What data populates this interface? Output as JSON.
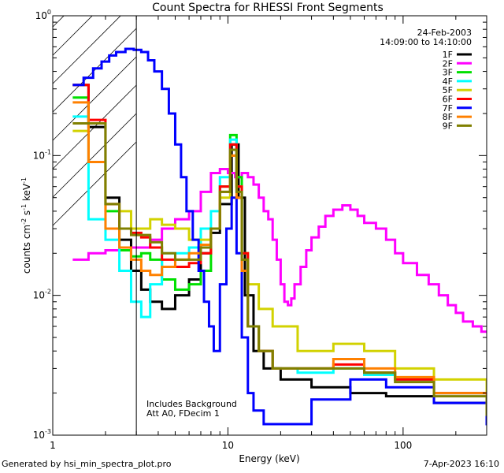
{
  "chart_data": {
    "type": "line",
    "title": "Count Spectra for RHESSI Front Segments",
    "xlabel": "Energy (keV)",
    "ylabel_parts": [
      "counts cm",
      "-2",
      " s",
      "-1",
      " keV",
      "-1"
    ],
    "xscale": "log",
    "yscale": "log",
    "xlim": [
      1,
      300
    ],
    "ylim": [
      0.001,
      1
    ],
    "x_ticks": [
      {
        "v": 1,
        "label": "1"
      },
      {
        "v": 10,
        "label": "10"
      },
      {
        "v": 100,
        "label": "100"
      }
    ],
    "y_ticks": [
      {
        "v": 1,
        "base": "10",
        "exp": "0"
      },
      {
        "v": 0.1,
        "base": "10",
        "exp": "-1"
      },
      {
        "v": 0.01,
        "base": "10",
        "exp": "-2"
      },
      {
        "v": 0.001,
        "base": "10",
        "exp": "-3"
      }
    ],
    "date": "24-Feb-2003",
    "time_range": "14:09:00 to 14:10:00",
    "annotations": [
      "Includes Background",
      "Att A0, FDecim 1"
    ],
    "shaded_region": [
      1,
      3
    ],
    "legend_position": "top-right",
    "colors": {
      "1F": "#000000",
      "2F": "#ff00ff",
      "3F": "#00e000",
      "4F": "#00ffff",
      "5F": "#d2d200",
      "6F": "#ff0000",
      "7F": "#0000ff",
      "8F": "#ff8000",
      "9F": "#808000"
    },
    "series": [
      {
        "name": "1F",
        "color": "#000000",
        "points": [
          [
            1.3,
            0.32
          ],
          [
            1.6,
            0.16
          ],
          [
            2.0,
            0.05
          ],
          [
            2.4,
            0.025
          ],
          [
            2.8,
            0.015
          ],
          [
            3.2,
            0.011
          ],
          [
            3.6,
            0.009
          ],
          [
            4.2,
            0.008
          ],
          [
            5,
            0.01
          ],
          [
            6,
            0.013
          ],
          [
            7,
            0.02
          ],
          [
            8,
            0.028
          ],
          [
            9,
            0.045
          ],
          [
            10.5,
            0.12
          ],
          [
            11.5,
            0.05
          ],
          [
            12.5,
            0.01
          ],
          [
            14,
            0.004
          ],
          [
            16,
            0.003
          ],
          [
            20,
            0.0025
          ],
          [
            30,
            0.0022
          ],
          [
            50,
            0.002
          ],
          [
            80,
            0.0019
          ],
          [
            150,
            0.0017
          ],
          [
            300,
            0.0012
          ]
        ]
      },
      {
        "name": "2F",
        "color": "#ff00ff",
        "points": [
          [
            1.3,
            0.018
          ],
          [
            1.6,
            0.02
          ],
          [
            2.0,
            0.021
          ],
          [
            2.4,
            0.021
          ],
          [
            2.8,
            0.022
          ],
          [
            3.2,
            0.022
          ],
          [
            3.6,
            0.025
          ],
          [
            4.2,
            0.03
          ],
          [
            5,
            0.035
          ],
          [
            6,
            0.04
          ],
          [
            7,
            0.055
          ],
          [
            8,
            0.075
          ],
          [
            9,
            0.08
          ],
          [
            10,
            0.075
          ],
          [
            11,
            0.07
          ],
          [
            12,
            0.075
          ],
          [
            13,
            0.07
          ],
          [
            14,
            0.062
          ],
          [
            15,
            0.05
          ],
          [
            16,
            0.04
          ],
          [
            17,
            0.035
          ],
          [
            18,
            0.025
          ],
          [
            19,
            0.018
          ],
          [
            20,
            0.012
          ],
          [
            21,
            0.009
          ],
          [
            22,
            0.0085
          ],
          [
            23,
            0.0095
          ],
          [
            24,
            0.012
          ],
          [
            26,
            0.016
          ],
          [
            28,
            0.021
          ],
          [
            30,
            0.026
          ],
          [
            33,
            0.031
          ],
          [
            36,
            0.037
          ],
          [
            40,
            0.041
          ],
          [
            45,
            0.044
          ],
          [
            50,
            0.041
          ],
          [
            55,
            0.037
          ],
          [
            60,
            0.033
          ],
          [
            70,
            0.03
          ],
          [
            80,
            0.025
          ],
          [
            90,
            0.02
          ],
          [
            100,
            0.017
          ],
          [
            120,
            0.014
          ],
          [
            140,
            0.012
          ],
          [
            160,
            0.01
          ],
          [
            180,
            0.0085
          ],
          [
            200,
            0.0075
          ],
          [
            220,
            0.0065
          ],
          [
            250,
            0.006
          ],
          [
            280,
            0.0055
          ],
          [
            300,
            0.0055
          ]
        ]
      },
      {
        "name": "3F",
        "color": "#00e000",
        "points": [
          [
            1.3,
            0.26
          ],
          [
            1.6,
            0.17
          ],
          [
            2.0,
            0.04
          ],
          [
            2.4,
            0.021
          ],
          [
            2.8,
            0.019
          ],
          [
            3.2,
            0.02
          ],
          [
            3.6,
            0.018
          ],
          [
            4.2,
            0.013
          ],
          [
            5,
            0.011
          ],
          [
            6,
            0.012
          ],
          [
            7,
            0.015
          ],
          [
            8,
            0.03
          ],
          [
            9,
            0.06
          ],
          [
            10.3,
            0.14
          ],
          [
            11.2,
            0.07
          ],
          [
            12,
            0.02
          ],
          [
            13,
            0.006
          ],
          [
            15,
            0.004
          ],
          [
            18,
            0.003
          ],
          [
            25,
            0.003
          ],
          [
            40,
            0.003
          ],
          [
            60,
            0.0028
          ],
          [
            90,
            0.0025
          ],
          [
            150,
            0.002
          ],
          [
            300,
            0.0015
          ]
        ]
      },
      {
        "name": "4F",
        "color": "#00ffff",
        "points": [
          [
            1.3,
            0.19
          ],
          [
            1.6,
            0.035
          ],
          [
            2.0,
            0.025
          ],
          [
            2.4,
            0.015
          ],
          [
            2.8,
            0.009
          ],
          [
            3.2,
            0.007
          ],
          [
            3.6,
            0.012
          ],
          [
            4.2,
            0.02
          ],
          [
            5,
            0.02
          ],
          [
            6,
            0.022
          ],
          [
            7,
            0.03
          ],
          [
            8,
            0.04
          ],
          [
            9,
            0.07
          ],
          [
            10.3,
            0.13
          ],
          [
            11.2,
            0.06
          ],
          [
            12,
            0.015
          ],
          [
            13,
            0.006
          ],
          [
            15,
            0.004
          ],
          [
            18,
            0.003
          ],
          [
            25,
            0.0028
          ],
          [
            40,
            0.003
          ],
          [
            60,
            0.0027
          ],
          [
            90,
            0.0025
          ],
          [
            150,
            0.002
          ],
          [
            300,
            0.0015
          ]
        ]
      },
      {
        "name": "5F",
        "color": "#d2d200",
        "points": [
          [
            1.3,
            0.15
          ],
          [
            1.6,
            0.09
          ],
          [
            2.0,
            0.045
          ],
          [
            2.4,
            0.04
          ],
          [
            2.8,
            0.03
          ],
          [
            3.2,
            0.03
          ],
          [
            3.6,
            0.035
          ],
          [
            4.2,
            0.032
          ],
          [
            5,
            0.03
          ],
          [
            6,
            0.025
          ],
          [
            7,
            0.025
          ],
          [
            8,
            0.03
          ],
          [
            9,
            0.05
          ],
          [
            10.3,
            0.1
          ],
          [
            11.2,
            0.06
          ],
          [
            12,
            0.02
          ],
          [
            13,
            0.012
          ],
          [
            15,
            0.008
          ],
          [
            18,
            0.006
          ],
          [
            25,
            0.004
          ],
          [
            40,
            0.0045
          ],
          [
            60,
            0.004
          ],
          [
            90,
            0.003
          ],
          [
            150,
            0.0025
          ],
          [
            300,
            0.0018
          ]
        ]
      },
      {
        "name": "6F",
        "color": "#ff0000",
        "points": [
          [
            1.3,
            0.32
          ],
          [
            1.6,
            0.18
          ],
          [
            2.0,
            0.045
          ],
          [
            2.4,
            0.03
          ],
          [
            2.8,
            0.028
          ],
          [
            3.2,
            0.026
          ],
          [
            3.6,
            0.022
          ],
          [
            4.2,
            0.018
          ],
          [
            5,
            0.016
          ],
          [
            6,
            0.017
          ],
          [
            7,
            0.02
          ],
          [
            8,
            0.03
          ],
          [
            9,
            0.06
          ],
          [
            10.3,
            0.12
          ],
          [
            11.2,
            0.06
          ],
          [
            12,
            0.02
          ],
          [
            13,
            0.006
          ],
          [
            15,
            0.004
          ],
          [
            18,
            0.003
          ],
          [
            25,
            0.003
          ],
          [
            40,
            0.0032
          ],
          [
            60,
            0.0028
          ],
          [
            90,
            0.0025
          ],
          [
            150,
            0.002
          ],
          [
            300,
            0.0015
          ]
        ]
      },
      {
        "name": "7F",
        "color": "#0000ff",
        "points": [
          [
            1.3,
            0.32
          ],
          [
            1.5,
            0.36
          ],
          [
            1.7,
            0.42
          ],
          [
            1.9,
            0.47
          ],
          [
            2.1,
            0.52
          ],
          [
            2.3,
            0.55
          ],
          [
            2.6,
            0.58
          ],
          [
            2.9,
            0.57
          ],
          [
            3.2,
            0.55
          ],
          [
            3.5,
            0.48
          ],
          [
            3.8,
            0.4
          ],
          [
            4.2,
            0.3
          ],
          [
            4.6,
            0.2
          ],
          [
            5,
            0.12
          ],
          [
            5.4,
            0.07
          ],
          [
            5.8,
            0.04
          ],
          [
            6.3,
            0.025
          ],
          [
            6.8,
            0.015
          ],
          [
            7.3,
            0.009
          ],
          [
            7.8,
            0.006
          ],
          [
            8.3,
            0.004
          ],
          [
            9,
            0.012
          ],
          [
            9.8,
            0.03
          ],
          [
            10.5,
            0.05
          ],
          [
            11.2,
            0.02
          ],
          [
            12,
            0.005
          ],
          [
            13,
            0.002
          ],
          [
            14,
            0.0015
          ],
          [
            16,
            0.0012
          ],
          [
            20,
            0.0012
          ],
          [
            30,
            0.0018
          ],
          [
            50,
            0.0025
          ],
          [
            80,
            0.0022
          ],
          [
            150,
            0.0017
          ],
          [
            300,
            0.0012
          ]
        ]
      },
      {
        "name": "8F",
        "color": "#ff8000",
        "points": [
          [
            1.3,
            0.24
          ],
          [
            1.6,
            0.09
          ],
          [
            2.0,
            0.03
          ],
          [
            2.4,
            0.022
          ],
          [
            2.8,
            0.018
          ],
          [
            3.2,
            0.015
          ],
          [
            3.6,
            0.014
          ],
          [
            4.2,
            0.016
          ],
          [
            5,
            0.018
          ],
          [
            6,
            0.02
          ],
          [
            7,
            0.023
          ],
          [
            8,
            0.03
          ],
          [
            9,
            0.055
          ],
          [
            10.3,
            0.1
          ],
          [
            11.2,
            0.05
          ],
          [
            12,
            0.015
          ],
          [
            13,
            0.006
          ],
          [
            15,
            0.004
          ],
          [
            18,
            0.003
          ],
          [
            25,
            0.003
          ],
          [
            40,
            0.0035
          ],
          [
            60,
            0.003
          ],
          [
            90,
            0.0026
          ],
          [
            150,
            0.002
          ],
          [
            300,
            0.0015
          ]
        ]
      },
      {
        "name": "9F",
        "color": "#808000",
        "points": [
          [
            1.3,
            0.17
          ],
          [
            1.6,
            0.17
          ],
          [
            2.0,
            0.045
          ],
          [
            2.4,
            0.03
          ],
          [
            2.8,
            0.027
          ],
          [
            3.2,
            0.027
          ],
          [
            3.6,
            0.024
          ],
          [
            4.2,
            0.02
          ],
          [
            5,
            0.018
          ],
          [
            6,
            0.018
          ],
          [
            7,
            0.022
          ],
          [
            8,
            0.03
          ],
          [
            9,
            0.055
          ],
          [
            10.3,
            0.11
          ],
          [
            11.2,
            0.055
          ],
          [
            12,
            0.018
          ],
          [
            13,
            0.006
          ],
          [
            15,
            0.004
          ],
          [
            18,
            0.003
          ],
          [
            25,
            0.003
          ],
          [
            40,
            0.003
          ],
          [
            60,
            0.0028
          ],
          [
            90,
            0.0024
          ],
          [
            150,
            0.0019
          ],
          [
            300,
            0.0014
          ]
        ]
      }
    ]
  },
  "footer": {
    "generated_by": "Generated by hsi_min_spectra_plot.pro",
    "timestamp": "7-Apr-2023 16:10"
  }
}
